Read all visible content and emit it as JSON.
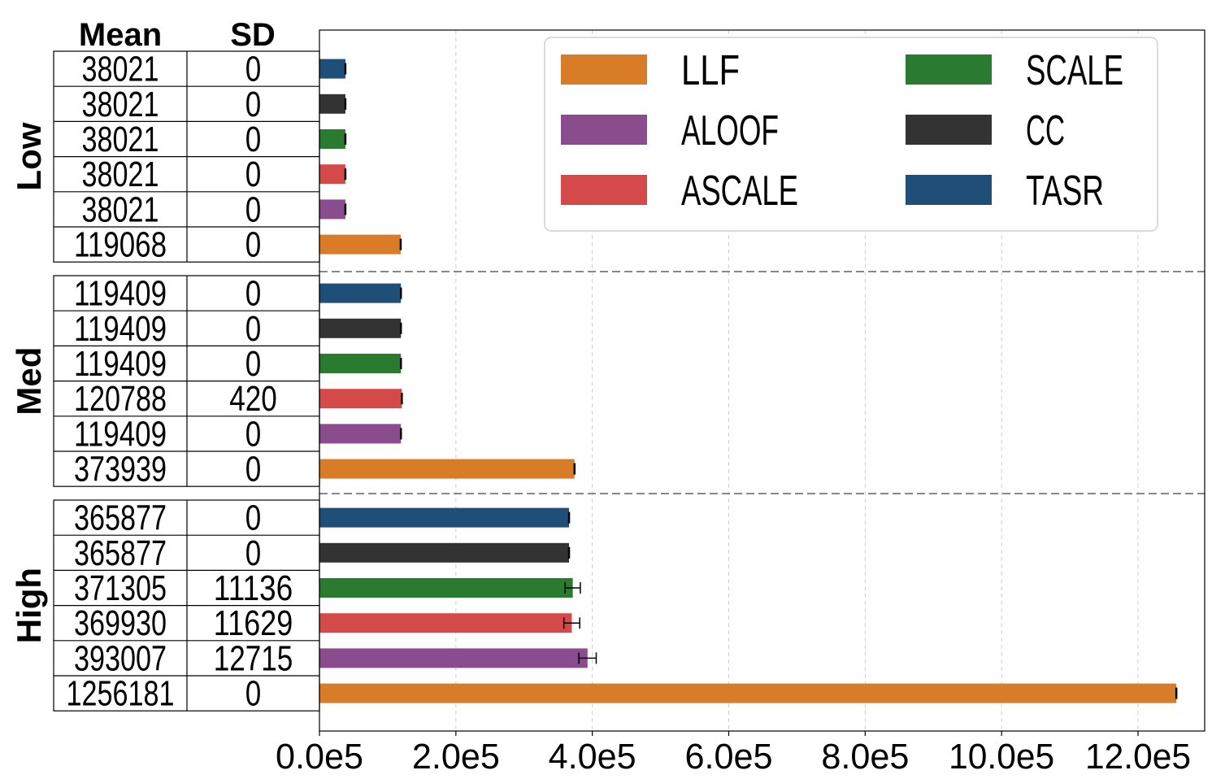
{
  "chart_data": {
    "type": "bar",
    "orientation": "horizontal",
    "xlim": [
      0,
      1300000
    ],
    "xticks": [
      0,
      200000,
      400000,
      600000,
      800000,
      1000000,
      1200000
    ],
    "xtick_labels": [
      "0.0e5",
      "2.0e5",
      "4.0e5",
      "6.0e5",
      "8.0e5",
      "10.0e5",
      "12.0e5"
    ],
    "grid": true,
    "legend_position": "top-right",
    "table_headers": {
      "mean": "Mean",
      "sd": "SD"
    },
    "groups": [
      {
        "label": "Low",
        "rows": [
          {
            "series": "TASR",
            "mean": 38021,
            "sd": 0,
            "mean_text": "38021",
            "sd_text": "0"
          },
          {
            "series": "CC",
            "mean": 38021,
            "sd": 0,
            "mean_text": "38021",
            "sd_text": "0"
          },
          {
            "series": "SCALE",
            "mean": 38021,
            "sd": 0,
            "mean_text": "38021",
            "sd_text": "0"
          },
          {
            "series": "ASCALE",
            "mean": 38021,
            "sd": 0,
            "mean_text": "38021",
            "sd_text": "0"
          },
          {
            "series": "ALOOF",
            "mean": 38021,
            "sd": 0,
            "mean_text": "38021",
            "sd_text": "0"
          },
          {
            "series": "LLF",
            "mean": 119068,
            "sd": 0,
            "mean_text": "119068",
            "sd_text": "0"
          }
        ]
      },
      {
        "label": "Med",
        "rows": [
          {
            "series": "TASR",
            "mean": 119409,
            "sd": 0,
            "mean_text": "119409",
            "sd_text": "0"
          },
          {
            "series": "CC",
            "mean": 119409,
            "sd": 0,
            "mean_text": "119409",
            "sd_text": "0"
          },
          {
            "series": "SCALE",
            "mean": 119409,
            "sd": 0,
            "mean_text": "119409",
            "sd_text": "0"
          },
          {
            "series": "ASCALE",
            "mean": 120788,
            "sd": 420,
            "mean_text": "120788",
            "sd_text": "420"
          },
          {
            "series": "ALOOF",
            "mean": 119409,
            "sd": 0,
            "mean_text": "119409",
            "sd_text": "0"
          },
          {
            "series": "LLF",
            "mean": 373939,
            "sd": 0,
            "mean_text": "373939",
            "sd_text": "0"
          }
        ]
      },
      {
        "label": "High",
        "rows": [
          {
            "series": "TASR",
            "mean": 365877,
            "sd": 0,
            "mean_text": "365877",
            "sd_text": "0"
          },
          {
            "series": "CC",
            "mean": 365877,
            "sd": 0,
            "mean_text": "365877",
            "sd_text": "0"
          },
          {
            "series": "SCALE",
            "mean": 371305,
            "sd": 11136,
            "mean_text": "371305",
            "sd_text": "11136"
          },
          {
            "series": "ASCALE",
            "mean": 369930,
            "sd": 11629,
            "mean_text": "369930",
            "sd_text": "11629"
          },
          {
            "series": "ALOOF",
            "mean": 393007,
            "sd": 12715,
            "mean_text": "393007",
            "sd_text": "12715"
          },
          {
            "series": "LLF",
            "mean": 1256181,
            "sd": 0,
            "mean_text": "1256181",
            "sd_text": "0"
          }
        ]
      }
    ],
    "legend": [
      {
        "name": "LLF",
        "color": "#d87c28"
      },
      {
        "name": "SCALE",
        "color": "#2a7b2f"
      },
      {
        "name": "ALOOF",
        "color": "#8b4c8e"
      },
      {
        "name": "CC",
        "color": "#333333"
      },
      {
        "name": "ASCALE",
        "color": "#d44a4a"
      },
      {
        "name": "TASR",
        "color": "#1f4e79"
      }
    ],
    "colors": {
      "LLF": "#d87c28",
      "ALOOF": "#8b4c8e",
      "ASCALE": "#d44a4a",
      "SCALE": "#2a7b2f",
      "CC": "#333333",
      "TASR": "#1f4e79"
    }
  }
}
